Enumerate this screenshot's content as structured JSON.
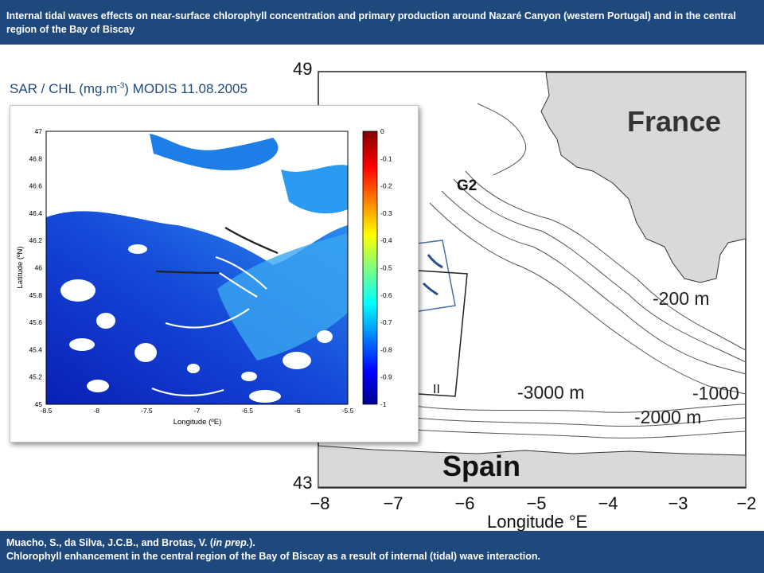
{
  "header": {
    "title": "Internal tidal waves effects on near-surface chlorophyll concentration and primary production around Nazaré Canyon (western Portugal) and in the central region of the Bay of Biscay"
  },
  "inset_title": {
    "prefix": "SAR / CHL (mg.m",
    "exponent": "-3",
    "suffix": ") MODIS 11.08.2005"
  },
  "region_map": {
    "y_ticks": [
      "49",
      "43"
    ],
    "x_ticks": [
      "−8",
      "−7",
      "−6",
      "−5",
      "−4",
      "−3",
      "−2"
    ],
    "x_label": "Longitude  °E",
    "labels": {
      "france": "France",
      "spain": "Spain",
      "g2": "G2",
      "box_label": "II",
      "contour_200": "-200 m",
      "contour_1000": "-1000",
      "contour_2000": "-2000 m",
      "contour_3000": "-3000 m"
    },
    "colors": {
      "land": "#d9d9d9",
      "sea": "#ffffff",
      "contour": "#555555",
      "box_blue": "#4a6fa5"
    }
  },
  "chl_map": {
    "x_ticks": [
      "-8.5",
      "-8",
      "-7.5",
      "-7",
      "-6.5",
      "-6",
      "-5.5"
    ],
    "y_ticks": [
      "47",
      "46.8",
      "46.6",
      "46.4",
      "46.2",
      "46",
      "45.8",
      "45.6",
      "45.4",
      "45.2",
      "45"
    ],
    "x_label": "Longitude (ºE)",
    "y_label": "Latitude (ºN)",
    "colorbar_ticks": [
      "0",
      "-0.1",
      "-0.2",
      "-0.3",
      "-0.4",
      "-0.5",
      "-0.6",
      "-0.7",
      "-0.8",
      "-0.9",
      "-1"
    ],
    "colormap": "jet",
    "colorbar_range": [
      -1,
      0
    ]
  },
  "footer": {
    "citation_authors": "Muacho, S., da Silva, J.C.B., and Brotas, V. (",
    "citation_status": "in prep.",
    "citation_close": ").",
    "citation_title": "Chlorophyll enhancement in the central region of the Bay of Biscay as a result of internal (tidal) wave interaction."
  }
}
